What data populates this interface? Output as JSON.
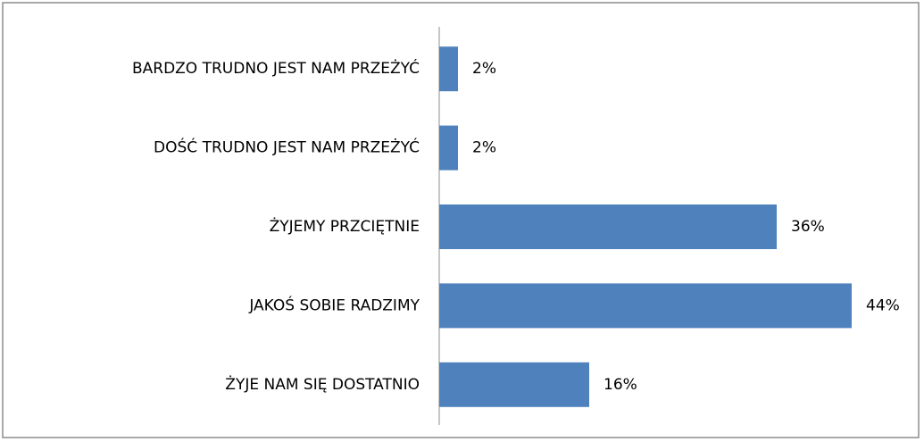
{
  "chart_data": {
    "type": "bar",
    "orientation": "horizontal",
    "categories": [
      "BARDZO TRUDNO JEST NAM PRZEŻYĆ",
      "DOŚĆ TRUDNO JEST NAM PRZEŻYĆ",
      "ŻYJEMY PRZCIĘTNIE",
      "JAKOŚ SOBIE RADZIMY",
      "ŻYJE NAM SIĘ DOSTATNIO"
    ],
    "values": [
      2,
      2,
      36,
      44,
      16
    ],
    "value_labels": [
      "2%",
      "2%",
      "36%",
      "44%",
      "16%"
    ],
    "color": "#4f81bd"
  }
}
